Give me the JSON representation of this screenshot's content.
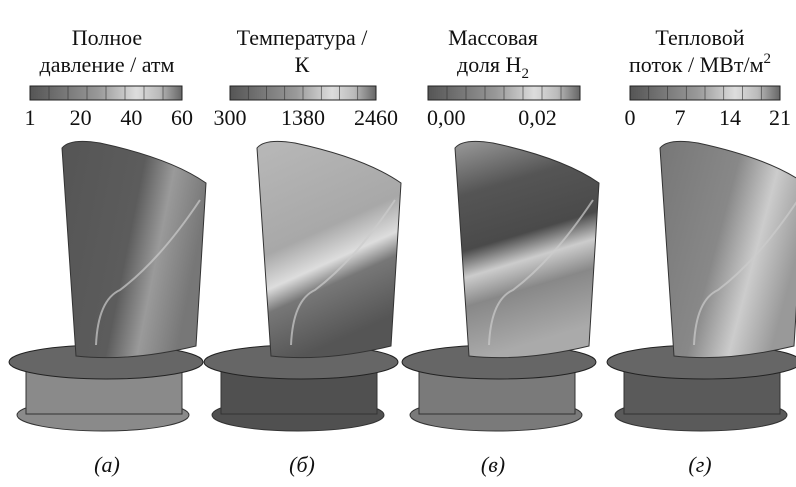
{
  "panels": [
    {
      "title_lines": [
        "Полное",
        "давление / атм"
      ],
      "ticks": [
        "1",
        "20",
        "40",
        "60"
      ],
      "caption": "(а)"
    },
    {
      "title_lines": [
        "Температура /",
        "К"
      ],
      "ticks": [
        "300",
        "1380",
        "2460"
      ],
      "caption": "(б)"
    },
    {
      "title_lines": [
        "Массовая",
        "доля H"
      ],
      "title_sub": "2",
      "ticks": [
        "0,00",
        "0,02"
      ],
      "caption": "(в)"
    },
    {
      "title_lines": [
        "Тепловой",
        "поток / МВт/м"
      ],
      "title_sup": "2",
      "ticks": [
        "0",
        "7",
        "14",
        "21"
      ],
      "caption": "(г)"
    }
  ]
}
